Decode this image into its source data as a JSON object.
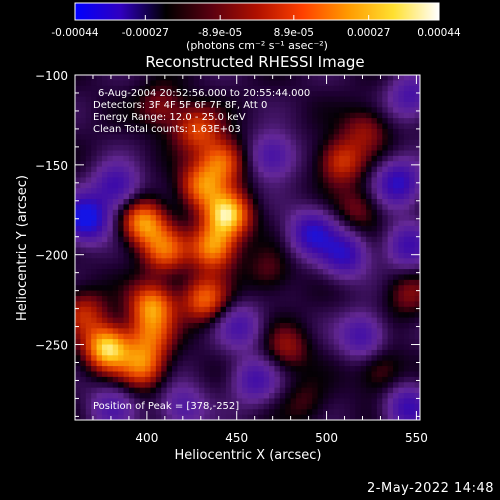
{
  "colorbar": {
    "tick_labels": [
      "-0.00044",
      "-0.00027",
      "-8.9e-05",
      "8.9e-05",
      "0.00027",
      "0.00044"
    ],
    "tick_values": [
      -0.00044,
      -0.00027,
      -8.9e-05,
      8.9e-05,
      0.00027,
      0.00044
    ],
    "range": [
      -0.00044,
      0.00044
    ],
    "units_label": "(photons cm⁻² s⁻¹ asec⁻²)",
    "colors": [
      "#0000ff",
      "#3000c0",
      "#000000",
      "#5a0010",
      "#b01000",
      "#ff4000",
      "#ff9a00",
      "#ffe030",
      "#ffffff"
    ]
  },
  "chart_data": {
    "type": "heatmap",
    "title": "Reconstructed RHESSI Image",
    "xlabel": "Heliocentric X (arcsec)",
    "ylabel": "Heliocentric Y (arcsec)",
    "xlim": [
      360,
      552
    ],
    "ylim": [
      -292,
      -100
    ],
    "x_ticks": [
      400,
      450,
      500,
      550
    ],
    "y_ticks": [
      -100,
      -150,
      -200,
      -250
    ],
    "x_tick_labels": [
      "400",
      "450",
      "500",
      "550"
    ],
    "y_tick_labels": [
      "−100",
      "−150",
      "−200",
      "−250"
    ],
    "annotations": [
      "6-Aug-2004 20:52:56.000 to 20:55:44.000",
      "Detectors: 3F 4F 5F 6F 7F 8F, Att 0",
      "Energy Range: 12.0 - 25.0 keV",
      "Clean   Total counts: 1.63E+03"
    ],
    "peak_label": "Position of Peak = [378,-252]",
    "peak": [
      378,
      -252
    ],
    "grid": false,
    "bright_sources": [
      {
        "x": 408,
        "y": -118,
        "level": 0.35
      },
      {
        "x": 428,
        "y": -130,
        "level": 0.55
      },
      {
        "x": 442,
        "y": -148,
        "level": 0.7
      },
      {
        "x": 430,
        "y": -162,
        "level": 0.65
      },
      {
        "x": 398,
        "y": -182,
        "level": 0.8
      },
      {
        "x": 445,
        "y": -178,
        "level": 0.95
      },
      {
        "x": 437,
        "y": -196,
        "level": 0.8
      },
      {
        "x": 410,
        "y": -198,
        "level": 0.6
      },
      {
        "x": 432,
        "y": -225,
        "level": 0.65
      },
      {
        "x": 403,
        "y": -228,
        "level": 0.75
      },
      {
        "x": 365,
        "y": -232,
        "level": 0.45
      },
      {
        "x": 378,
        "y": -252,
        "level": 1.0
      },
      {
        "x": 398,
        "y": -262,
        "level": 0.65
      },
      {
        "x": 402,
        "y": -245,
        "level": 0.5
      },
      {
        "x": 508,
        "y": -148,
        "level": 0.55
      },
      {
        "x": 522,
        "y": -130,
        "level": 0.35
      },
      {
        "x": 518,
        "y": -175,
        "level": 0.3
      },
      {
        "x": 468,
        "y": -210,
        "level": 0.25
      },
      {
        "x": 478,
        "y": -252,
        "level": 0.35
      },
      {
        "x": 530,
        "y": -265,
        "level": 0.3
      },
      {
        "x": 545,
        "y": -222,
        "level": 0.3
      },
      {
        "x": 488,
        "y": -282,
        "level": 0.2
      }
    ],
    "dark_sources": [
      {
        "x": 366,
        "y": -180,
        "level": -0.95
      },
      {
        "x": 383,
        "y": -162,
        "level": -0.6
      },
      {
        "x": 470,
        "y": -145,
        "level": -0.55
      },
      {
        "x": 492,
        "y": -188,
        "level": -0.7
      },
      {
        "x": 510,
        "y": -200,
        "level": -0.65
      },
      {
        "x": 540,
        "y": -160,
        "level": -0.7
      },
      {
        "x": 547,
        "y": -112,
        "level": -0.5
      },
      {
        "x": 520,
        "y": -245,
        "level": -0.55
      },
      {
        "x": 460,
        "y": -270,
        "level": -0.5
      },
      {
        "x": 545,
        "y": -285,
        "level": -0.6
      },
      {
        "x": 452,
        "y": -240,
        "level": -0.45
      },
      {
        "x": 545,
        "y": -195,
        "level": -0.55
      },
      {
        "x": 380,
        "y": -285,
        "level": -0.4
      },
      {
        "x": 420,
        "y": -285,
        "level": -0.45
      }
    ]
  },
  "footer": {
    "timestamp": "2-May-2022 14:48"
  }
}
